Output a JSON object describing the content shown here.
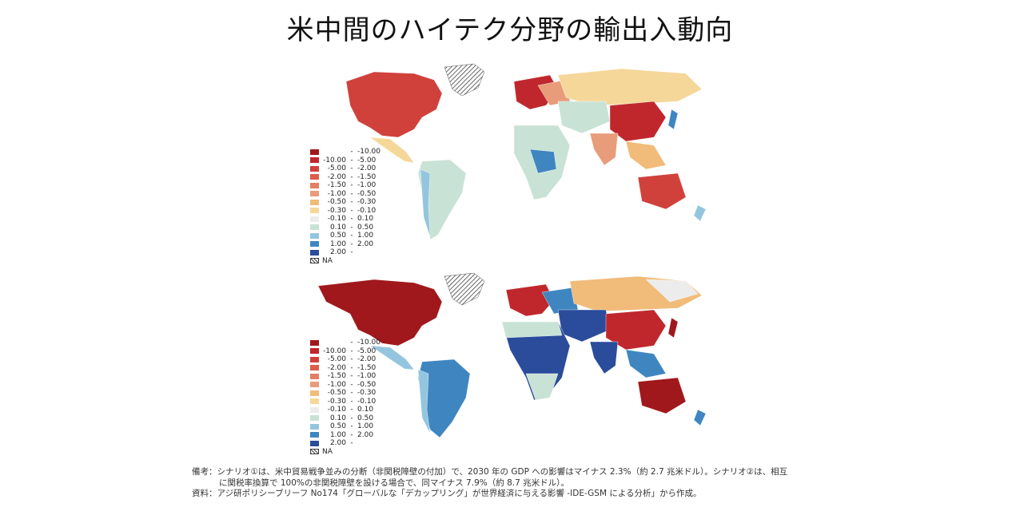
{
  "title": "米中間のハイテク分野の輸出入動向",
  "colors": {
    "c1": "#a0181c",
    "c2": "#c0272d",
    "c3": "#d0413b",
    "c4": "#dc5d4a",
    "c5": "#e27e63",
    "c6": "#e89c7a",
    "c7": "#f1bb7a",
    "c8": "#f6d79a",
    "c9": "#ececec",
    "c10": "#c9e2d6",
    "c11": "#93c6de",
    "c12": "#3f86c1",
    "c13": "#2b4c9b"
  },
  "legend": [
    {
      "lo": "",
      "dash": "-",
      "hi": "-10.00",
      "color": "#a0181c"
    },
    {
      "lo": "-10.00",
      "dash": "-",
      "hi": "-5.00",
      "color": "#c0272d"
    },
    {
      "lo": "-5.00",
      "dash": "-",
      "hi": "-2.00",
      "color": "#d0413b"
    },
    {
      "lo": "-2.00",
      "dash": "-",
      "hi": "-1.50",
      "color": "#dc5d4a"
    },
    {
      "lo": "-1.50",
      "dash": "-",
      "hi": "-1.00",
      "color": "#e27e63"
    },
    {
      "lo": "-1.00",
      "dash": "-",
      "hi": "-0.50",
      "color": "#e89c7a"
    },
    {
      "lo": "-0.50",
      "dash": "-",
      "hi": "-0.30",
      "color": "#f1bb7a"
    },
    {
      "lo": "-0.30",
      "dash": "-",
      "hi": "-0.10",
      "color": "#f6d79a"
    },
    {
      "lo": "-0.10",
      "dash": "-",
      "hi": "0.10",
      "color": "#ececec"
    },
    {
      "lo": "0.10",
      "dash": "-",
      "hi": "0.50",
      "color": "#c9e2d6"
    },
    {
      "lo": "0.50",
      "dash": "-",
      "hi": "1.00",
      "color": "#93c6de"
    },
    {
      "lo": "1.00",
      "dash": "-",
      "hi": "2.00",
      "color": "#3f86c1"
    },
    {
      "lo": "2.00",
      "dash": "-",
      "hi": "",
      "color": "#2b4c9b"
    },
    {
      "lo": "NA",
      "dash": "",
      "hi": "",
      "color": "hatch"
    }
  ],
  "notes": {
    "line1": "備考：シナリオ①は、米中貿易戦争並みの分断（非関税障壁の付加）で、2030 年の GDP への影響はマイナス 2.3%（約 2.7 兆米ドル）。シナリオ②は、相互",
    "line2": "に関税率換算で 100%の非関税障壁を設ける場合で、同マイナス 7.9%（約 8.7 兆米ドル）。",
    "line3": "資料：アジ研ポリシーブリーフ No174「グローバルな「デカップリング」が世界経済に与える影響 -IDE-GSM による分析」から作成。"
  }
}
